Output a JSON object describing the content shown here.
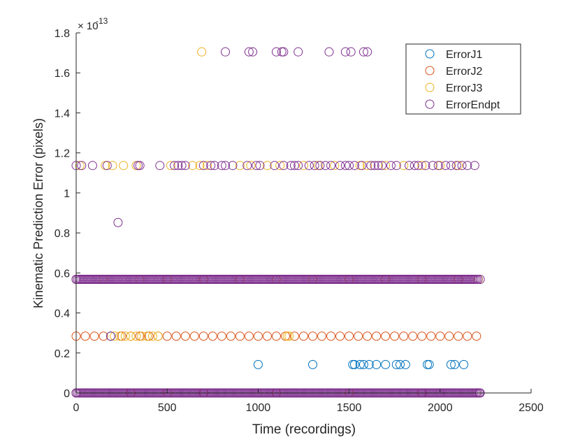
{
  "chart_data": {
    "type": "scatter",
    "title": "",
    "xlabel": "Time (recordings)",
    "ylabel": "Kinematic Prediction Error (pixels)",
    "y_exponent_label": "× 10",
    "y_exponent_power": "-13",
    "xlim": [
      0,
      2500
    ],
    "ylim": [
      0,
      1.8
    ],
    "xticks": [
      0,
      500,
      1000,
      1500,
      2000,
      2500
    ],
    "xtick_labels": [
      "0",
      "500",
      "1000",
      "1500",
      "2000",
      "2500"
    ],
    "yticks": [
      0,
      0.2,
      0.4,
      0.6,
      0.8,
      1,
      1.2,
      1.4,
      1.6,
      1.8
    ],
    "ytick_labels": [
      "0",
      "0.2",
      "0.4",
      "0.6",
      "0.8",
      "1",
      "1.2",
      "1.4",
      "1.6",
      "1.8"
    ],
    "grid": false,
    "legend_position": "top-right",
    "marker": "open-circle",
    "series": [
      {
        "name": "ErrorJ1",
        "color": "#0072BD",
        "points": [
          [
            190,
            0.284
          ],
          [
            1000,
            0.142
          ],
          [
            1300,
            0.142
          ],
          [
            1520,
            0.142
          ],
          [
            1530,
            0.142
          ],
          [
            1560,
            0.142
          ],
          [
            1580,
            0.142
          ],
          [
            1610,
            0.142
          ],
          [
            1650,
            0.142
          ],
          [
            1700,
            0.142
          ],
          [
            1760,
            0.142
          ],
          [
            1780,
            0.142
          ],
          [
            1810,
            0.142
          ],
          [
            1930,
            0.142
          ],
          [
            1940,
            0.142
          ],
          [
            2060,
            0.142
          ],
          [
            2080,
            0.142
          ],
          [
            2130,
            0.142
          ],
          [
            0,
            0
          ],
          [
            200,
            0
          ],
          [
            400,
            0
          ],
          [
            600,
            0
          ],
          [
            800,
            0
          ],
          [
            1000,
            0
          ],
          [
            1200,
            0
          ],
          [
            1400,
            0
          ],
          [
            1600,
            0
          ],
          [
            1800,
            0
          ],
          [
            2000,
            0
          ],
          [
            2200,
            0
          ]
        ]
      },
      {
        "name": "ErrorJ2",
        "color": "#D95319",
        "points": [
          [
            0,
            0.284
          ],
          [
            50,
            0.284
          ],
          [
            100,
            0.284
          ],
          [
            150,
            0.284
          ],
          [
            250,
            0.284
          ],
          [
            300,
            0.284
          ],
          [
            350,
            0.284
          ],
          [
            400,
            0.284
          ],
          [
            450,
            0.284
          ],
          [
            500,
            0.284
          ],
          [
            550,
            0.284
          ],
          [
            600,
            0.284
          ],
          [
            650,
            0.284
          ],
          [
            700,
            0.284
          ],
          [
            750,
            0.284
          ],
          [
            800,
            0.284
          ],
          [
            850,
            0.284
          ],
          [
            900,
            0.284
          ],
          [
            950,
            0.284
          ],
          [
            1000,
            0.284
          ],
          [
            1050,
            0.284
          ],
          [
            1100,
            0.284
          ],
          [
            1150,
            0.284
          ],
          [
            1200,
            0.284
          ],
          [
            1250,
            0.284
          ],
          [
            1300,
            0.284
          ],
          [
            1350,
            0.284
          ],
          [
            1400,
            0.284
          ],
          [
            1450,
            0.284
          ],
          [
            1500,
            0.284
          ],
          [
            1550,
            0.284
          ],
          [
            1600,
            0.284
          ],
          [
            1650,
            0.284
          ],
          [
            1700,
            0.284
          ],
          [
            1750,
            0.284
          ],
          [
            1800,
            0.284
          ],
          [
            1850,
            0.284
          ],
          [
            1900,
            0.284
          ],
          [
            1950,
            0.284
          ],
          [
            2000,
            0.284
          ],
          [
            2050,
            0.284
          ],
          [
            2100,
            0.284
          ],
          [
            2150,
            0.284
          ],
          [
            2200,
            0.284
          ],
          [
            0,
            0
          ],
          [
            300,
            0
          ],
          [
            700,
            0
          ],
          [
            1100,
            0
          ],
          [
            1500,
            0
          ],
          [
            1900,
            0
          ],
          [
            2200,
            0
          ]
        ]
      },
      {
        "name": "ErrorJ3",
        "color": "#EDB120",
        "points": [
          [
            690,
            1.705
          ],
          [
            20,
            1.137
          ],
          [
            160,
            1.137
          ],
          [
            200,
            1.137
          ],
          [
            260,
            1.137
          ],
          [
            330,
            1.137
          ],
          [
            520,
            1.137
          ],
          [
            640,
            1.137
          ],
          [
            680,
            1.137
          ],
          [
            720,
            1.137
          ],
          [
            900,
            1.137
          ],
          [
            960,
            1.137
          ],
          [
            1050,
            1.137
          ],
          [
            1120,
            1.137
          ],
          [
            1250,
            1.137
          ],
          [
            1330,
            1.137
          ],
          [
            1420,
            1.137
          ],
          [
            1560,
            1.137
          ],
          [
            1600,
            1.137
          ],
          [
            1700,
            1.137
          ],
          [
            1800,
            1.137
          ],
          [
            1900,
            1.137
          ],
          [
            2000,
            1.137
          ],
          [
            2100,
            1.137
          ],
          [
            0,
            0.568
          ],
          [
            150,
            0.568
          ],
          [
            350,
            0.568
          ],
          [
            500,
            0.568
          ],
          [
            700,
            0.568
          ],
          [
            900,
            0.568
          ],
          [
            1100,
            0.568
          ],
          [
            1300,
            0.568
          ],
          [
            1500,
            0.568
          ],
          [
            1700,
            0.568
          ],
          [
            1900,
            0.568
          ],
          [
            2100,
            0.568
          ],
          [
            2210,
            0.568
          ],
          [
            210,
            0.284
          ],
          [
            240,
            0.284
          ],
          [
            270,
            0.284
          ],
          [
            300,
            0.284
          ],
          [
            330,
            0.284
          ],
          [
            360,
            0.284
          ],
          [
            390,
            0.284
          ],
          [
            420,
            0.284
          ],
          [
            450,
            0.284
          ],
          [
            1160,
            0.284
          ],
          [
            1170,
            0.284
          ],
          [
            0,
            0
          ],
          [
            500,
            0
          ],
          [
            1000,
            0
          ],
          [
            1500,
            0
          ],
          [
            2000,
            0
          ]
        ]
      },
      {
        "name": "ErrorEndpt",
        "color": "#7E2F8E",
        "points": [
          [
            820,
            1.705
          ],
          [
            950,
            1.705
          ],
          [
            970,
            1.705
          ],
          [
            1100,
            1.705
          ],
          [
            1130,
            1.705
          ],
          [
            1140,
            1.705
          ],
          [
            1220,
            1.705
          ],
          [
            1390,
            1.705
          ],
          [
            1480,
            1.705
          ],
          [
            1510,
            1.705
          ],
          [
            1580,
            1.705
          ],
          [
            1600,
            1.705
          ],
          [
            0,
            1.137
          ],
          [
            30,
            1.137
          ],
          [
            90,
            1.137
          ],
          [
            170,
            1.137
          ],
          [
            340,
            1.137
          ],
          [
            350,
            1.137
          ],
          [
            460,
            1.137
          ],
          [
            540,
            1.137
          ],
          [
            560,
            1.137
          ],
          [
            580,
            1.137
          ],
          [
            600,
            1.137
          ],
          [
            700,
            1.137
          ],
          [
            740,
            1.137
          ],
          [
            760,
            1.137
          ],
          [
            800,
            1.137
          ],
          [
            820,
            1.137
          ],
          [
            860,
            1.137
          ],
          [
            940,
            1.137
          ],
          [
            990,
            1.137
          ],
          [
            1010,
            1.137
          ],
          [
            1090,
            1.137
          ],
          [
            1140,
            1.137
          ],
          [
            1180,
            1.137
          ],
          [
            1200,
            1.137
          ],
          [
            1220,
            1.137
          ],
          [
            1280,
            1.137
          ],
          [
            1310,
            1.137
          ],
          [
            1340,
            1.137
          ],
          [
            1370,
            1.137
          ],
          [
            1400,
            1.137
          ],
          [
            1450,
            1.137
          ],
          [
            1480,
            1.137
          ],
          [
            1500,
            1.137
          ],
          [
            1530,
            1.137
          ],
          [
            1570,
            1.137
          ],
          [
            1620,
            1.137
          ],
          [
            1640,
            1.137
          ],
          [
            1660,
            1.137
          ],
          [
            1680,
            1.137
          ],
          [
            1730,
            1.137
          ],
          [
            1760,
            1.137
          ],
          [
            1830,
            1.137
          ],
          [
            1860,
            1.137
          ],
          [
            1880,
            1.137
          ],
          [
            1920,
            1.137
          ],
          [
            1960,
            1.137
          ],
          [
            1990,
            1.137
          ],
          [
            2030,
            1.137
          ],
          [
            2060,
            1.137
          ],
          [
            2090,
            1.137
          ],
          [
            2120,
            1.137
          ],
          [
            2150,
            1.137
          ],
          [
            2190,
            1.137
          ],
          [
            230,
            0.852
          ],
          [
            190,
            0.284
          ],
          [
            0,
            0.568
          ],
          [
            2220,
            0.568
          ],
          [
            0,
            0
          ],
          [
            2220,
            0
          ]
        ]
      }
    ],
    "dense_bands": [
      {
        "series": "ErrorEndpt",
        "y": 0.568,
        "x_from": 0,
        "x_to": 2215,
        "step": 8
      },
      {
        "series": "ErrorEndpt",
        "y": 0,
        "x_from": 0,
        "x_to": 2220,
        "step": 8
      }
    ]
  }
}
